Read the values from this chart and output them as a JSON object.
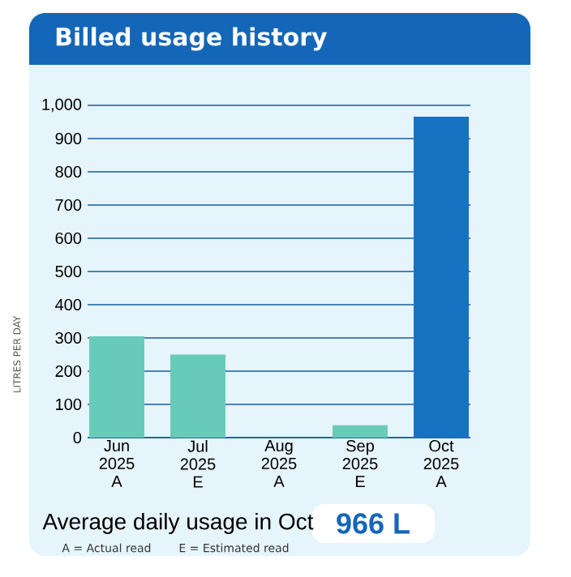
{
  "chart_data": {
    "type": "bar",
    "title": "Billed usage history",
    "ylabel": "LITRES PER DAY",
    "categories": [
      "Jun 2025 A",
      "Jul 2025 E",
      "Aug 2025 A",
      "Sep 2025 E",
      "Oct 2025 A"
    ],
    "values": [
      305,
      250,
      0,
      37,
      966
    ],
    "colors": [
      "#68cbb9",
      "#68cbb9",
      "#68cbb9",
      "#68cbb9",
      "#1872c2"
    ],
    "ylim": [
      0,
      1000
    ],
    "yticks": [
      0,
      100,
      200,
      300,
      400,
      500,
      600,
      700,
      800,
      900,
      {
        "value": 1000,
        "label": "1,000"
      }
    ],
    "grid": "y",
    "annotations": [
      "Average daily usage in Oct",
      "966 L",
      "A = Actual read",
      "E = Estimated read"
    ]
  }
}
